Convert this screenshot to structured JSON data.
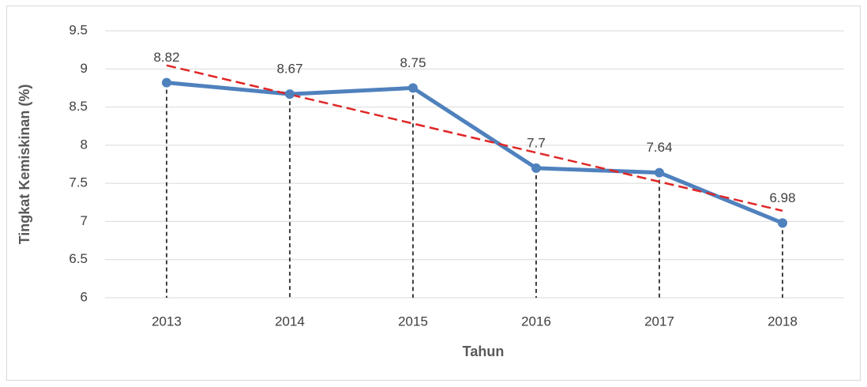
{
  "chart_data": {
    "type": "line",
    "xlabel": "Tahun",
    "ylabel": "Tingkat Kemiskinan (%)",
    "categories": [
      "2013",
      "2014",
      "2015",
      "2016",
      "2017",
      "2018"
    ],
    "values": [
      8.82,
      8.67,
      8.75,
      7.7,
      7.64,
      6.98
    ],
    "color": "#4f81bd",
    "ylim": [
      6,
      9.5
    ],
    "yticks": [
      6,
      6.5,
      7,
      7.5,
      8,
      8.5,
      9,
      9.5
    ],
    "grid": true,
    "drop_lines": true,
    "drop_line_color": "#000000",
    "trendline": "linear",
    "trendline_color": "#e02626"
  }
}
